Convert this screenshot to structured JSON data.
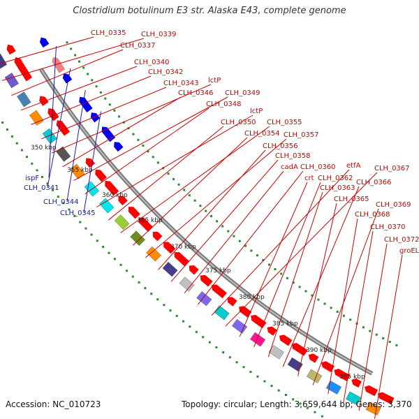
{
  "title": "Clostridium botulinum E3 str. Alaska E43, complete genome",
  "footer": {
    "accession": "Accession: NC_010723",
    "summary": "Topology: circular; Length: 3,659,644 bp; Genes: 3,370"
  },
  "colors": {
    "forward_label": "#cc0000",
    "reverse_label": "#1a1aaa",
    "backbone": "#888888",
    "tick": "#2a8a2a",
    "forward_cds": "#ff0000",
    "reverse_cds": "#0000ee"
  },
  "kbp_labels": [
    "350 kbp",
    "355 kbp",
    "360 kbp",
    "365 kbp",
    "370 kbp",
    "375 kbp",
    "380 kbp",
    "385 kbp",
    "390 kbp",
    "395 kbp"
  ],
  "forward_labels": [
    "CLH_0335",
    "CLH_0339",
    "CLH_0337",
    "CLH_0340",
    "CLH_0342",
    "CLH_0343",
    "lctP",
    "CLH_0346",
    "CLH_0349",
    "CLH_0348",
    "lctP",
    "CLH_0350",
    "CLH_0355",
    "CLH_0354",
    "CLH_0357",
    "CLH_0356",
    "CLH_0358",
    "cadA",
    "CLH_0360",
    "etfA",
    "CLH_0367",
    "crt",
    "CLH_0362",
    "CLH_0363",
    "CLH_0366",
    "CLH_0365",
    "CLH_0369",
    "CLH_0368",
    "CLH_0370",
    "CLH_0372",
    "groEL"
  ],
  "reverse_labels": [
    "ispF",
    "CLH_0341",
    "CLH_0344",
    "CLH_0345"
  ]
}
